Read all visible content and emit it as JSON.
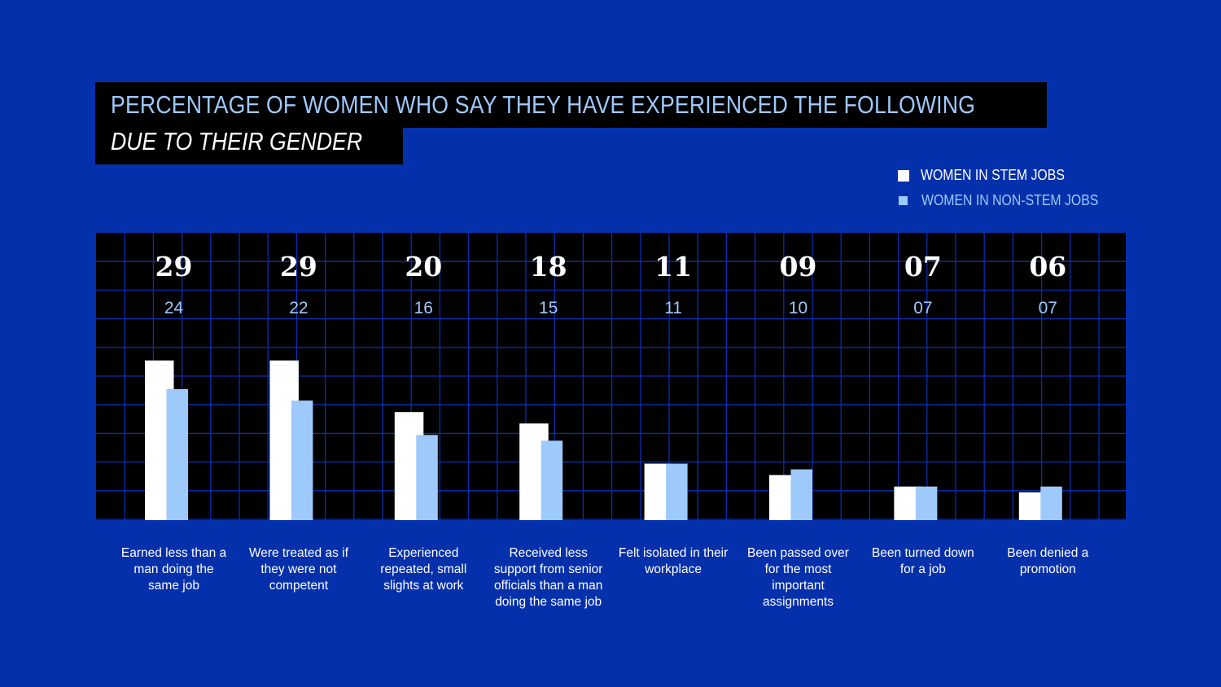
{
  "title": {
    "line1": "PERCENTAGE OF WOMEN WHO SAY THEY HAVE EXPERIENCED THE FOLLOWING",
    "line2": "DUE TO THEIR GENDER"
  },
  "legend": [
    {
      "label": "WOMEN IN STEM JOBS",
      "color": "#ffffff"
    },
    {
      "label": "WOMEN IN NON-STEM JOBS",
      "color": "#9ec9fb"
    }
  ],
  "colors": {
    "background": "#0430ab",
    "plot_background": "#000000",
    "grid": "#0a2fb0",
    "stem": "#ffffff",
    "nonstem": "#9ec9fb"
  },
  "chart_data": {
    "type": "bar",
    "categories": [
      "Earned less than a man doing the same job",
      "Were treated as if they were not competent",
      "Experienced repeated, small slights at work",
      "Received less support from senior officials than a man doing the same job",
      "Felt isolated in their workplace",
      "Been passed over for the most important assignments",
      "Been turned down for a job",
      "Been denied a promotion"
    ],
    "series": [
      {
        "name": "WOMEN IN STEM JOBS",
        "values": [
          29,
          29,
          20,
          18,
          11,
          9,
          7,
          6
        ],
        "value_labels": [
          "29",
          "29",
          "20",
          "18",
          "11",
          "09",
          "07",
          "06"
        ]
      },
      {
        "name": "WOMEN IN NON-STEM JOBS",
        "values": [
          24,
          22,
          16,
          15,
          11,
          10,
          7,
          7
        ],
        "value_labels": [
          "24",
          "22",
          "16",
          "15",
          "11",
          "10",
          "07",
          "07"
        ]
      }
    ],
    "ylim": [
      0,
      50
    ],
    "grid": true,
    "legend_position": "top-right"
  }
}
